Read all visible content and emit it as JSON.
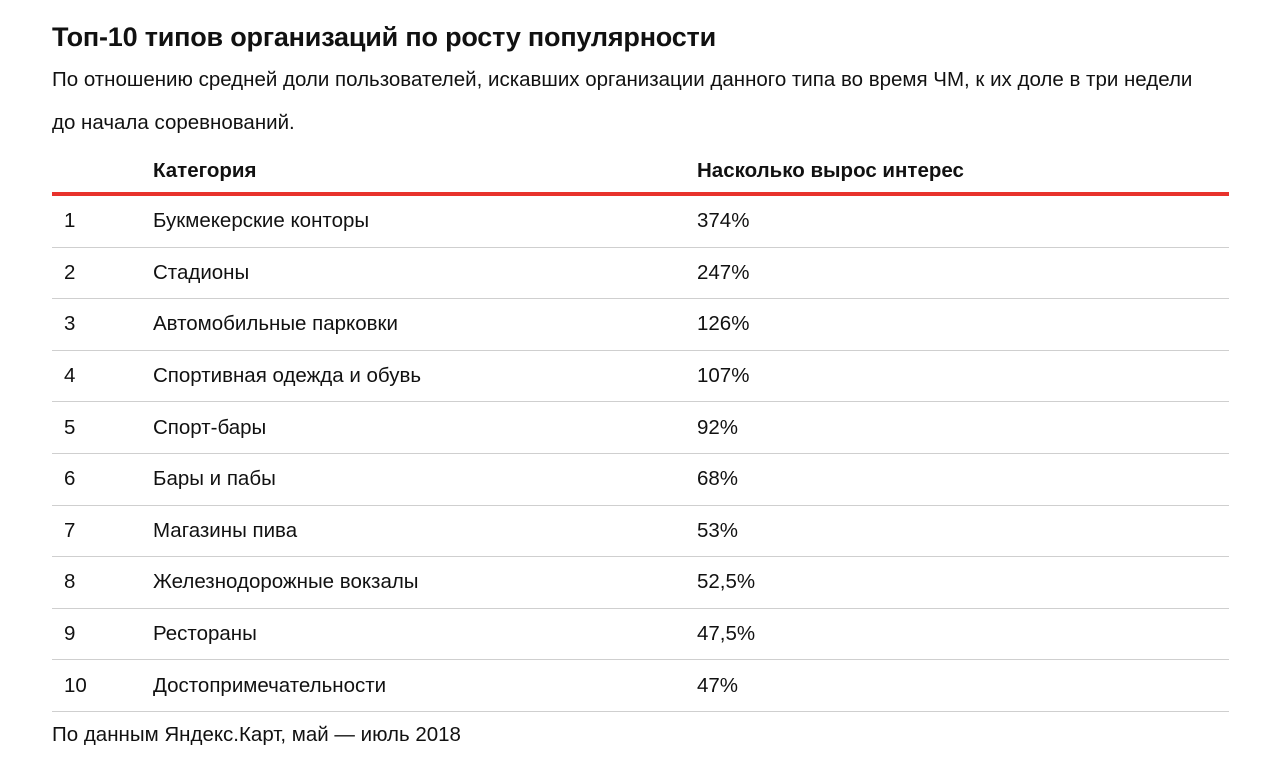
{
  "title": "Топ-10 типов организаций по росту популярности",
  "subtitle": "По отношению средней доли пользователей, искавших организации данного типа во время ЧМ, к их доле в три недели до начала соревнований.",
  "table": {
    "headers": {
      "num": "",
      "category": "Категория",
      "value": "Насколько вырос интерес"
    },
    "rows": [
      {
        "num": "1",
        "category": "Букмекерские конторы",
        "value": "374%"
      },
      {
        "num": "2",
        "category": "Стадионы",
        "value": "247%"
      },
      {
        "num": "3",
        "category": "Автомобильные парковки",
        "value": "126%"
      },
      {
        "num": "4",
        "category": "Спортивная одежда и обувь",
        "value": "107%"
      },
      {
        "num": "5",
        "category": "Спорт-бары",
        "value": "92%"
      },
      {
        "num": "6",
        "category": "Бары и пабы",
        "value": "68%"
      },
      {
        "num": "7",
        "category": "Магазины пива",
        "value": "53%"
      },
      {
        "num": "8",
        "category": "Железнодорожные вокзалы",
        "value": "52,5%"
      },
      {
        "num": "9",
        "category": "Рестораны",
        "value": "47,5%"
      },
      {
        "num": "10",
        "category": "Достопримечательности",
        "value": "47%"
      }
    ]
  },
  "footer": "По данным Яндекс.Карт, май — июль 2018",
  "colors": {
    "header_rule": "#e8322c",
    "row_divider": "#cfcfcf"
  }
}
